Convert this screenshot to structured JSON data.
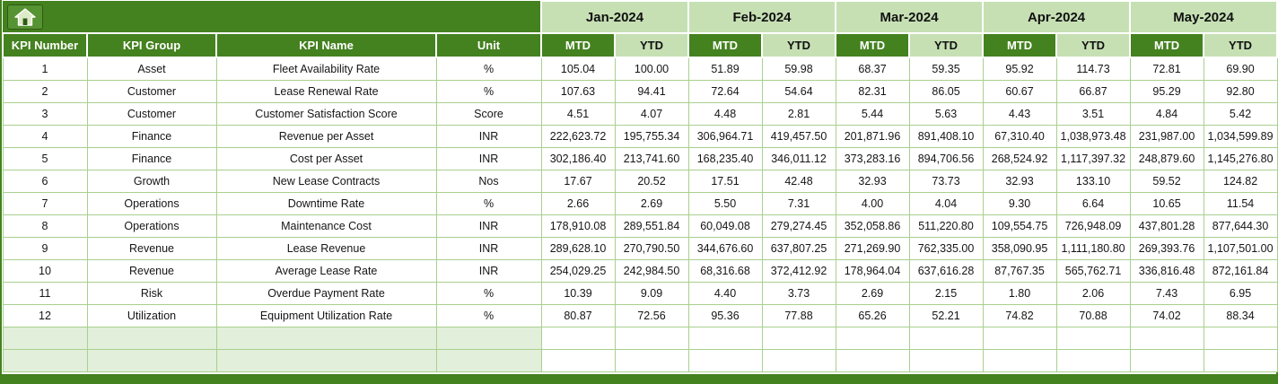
{
  "colors": {
    "dark_green": "#44811F",
    "light_green": "#C6E0B4",
    "grid_green": "#A9D08E",
    "pale_green": "#E2EFDA"
  },
  "toolbar": {
    "home_icon": "home"
  },
  "months": [
    "Jan-2024",
    "Feb-2024",
    "Mar-2024",
    "Apr-2024",
    "May-2024"
  ],
  "fixed_columns": [
    "KPI Number",
    "KPI Group",
    "KPI Name",
    "Unit"
  ],
  "period_columns": [
    "MTD",
    "YTD"
  ],
  "rows": [
    {
      "number": "1",
      "group": "Asset",
      "name": "Fleet Availability Rate",
      "unit": "%",
      "values": [
        "105.04",
        "100.00",
        "51.89",
        "59.98",
        "68.37",
        "59.35",
        "95.92",
        "114.73",
        "72.81",
        "69.90"
      ]
    },
    {
      "number": "2",
      "group": "Customer",
      "name": "Lease Renewal Rate",
      "unit": "%",
      "values": [
        "107.63",
        "94.41",
        "72.64",
        "54.64",
        "82.31",
        "86.05",
        "60.67",
        "66.87",
        "95.29",
        "92.80"
      ]
    },
    {
      "number": "3",
      "group": "Customer",
      "name": "Customer Satisfaction Score",
      "unit": "Score",
      "values": [
        "4.51",
        "4.07",
        "4.48",
        "2.81",
        "5.44",
        "5.63",
        "4.43",
        "3.51",
        "4.84",
        "5.42"
      ]
    },
    {
      "number": "4",
      "group": "Finance",
      "name": "Revenue per Asset",
      "unit": "INR",
      "values": [
        "222,623.72",
        "195,755.34",
        "306,964.71",
        "419,457.50",
        "201,871.96",
        "891,408.10",
        "67,310.40",
        "1,038,973.48",
        "231,987.00",
        "1,034,599.89"
      ]
    },
    {
      "number": "5",
      "group": "Finance",
      "name": "Cost per Asset",
      "unit": "INR",
      "values": [
        "302,186.40",
        "213,741.60",
        "168,235.40",
        "346,011.12",
        "373,283.16",
        "894,706.56",
        "268,524.92",
        "1,117,397.32",
        "248,879.60",
        "1,145,276.80"
      ]
    },
    {
      "number": "6",
      "group": "Growth",
      "name": "New Lease Contracts",
      "unit": "Nos",
      "values": [
        "17.67",
        "20.52",
        "17.51",
        "42.48",
        "32.93",
        "73.73",
        "32.93",
        "133.10",
        "59.52",
        "124.82"
      ]
    },
    {
      "number": "7",
      "group": "Operations",
      "name": "Downtime Rate",
      "unit": "%",
      "values": [
        "2.66",
        "2.69",
        "5.50",
        "7.31",
        "4.00",
        "4.04",
        "9.30",
        "6.64",
        "10.65",
        "11.54"
      ]
    },
    {
      "number": "8",
      "group": "Operations",
      "name": "Maintenance Cost",
      "unit": "INR",
      "values": [
        "178,910.08",
        "289,551.84",
        "60,049.08",
        "279,274.45",
        "352,058.86",
        "511,220.80",
        "109,554.75",
        "726,948.09",
        "437,801.28",
        "877,644.30"
      ]
    },
    {
      "number": "9",
      "group": "Revenue",
      "name": "Lease Revenue",
      "unit": "INR",
      "values": [
        "289,628.10",
        "270,790.50",
        "344,676.60",
        "637,807.25",
        "271,269.90",
        "762,335.00",
        "358,090.95",
        "1,111,180.80",
        "269,393.76",
        "1,107,501.00"
      ]
    },
    {
      "number": "10",
      "group": "Revenue",
      "name": "Average Lease Rate",
      "unit": "INR",
      "values": [
        "254,029.25",
        "242,984.50",
        "68,316.68",
        "372,412.92",
        "178,964.04",
        "637,616.28",
        "87,767.35",
        "565,762.71",
        "336,816.48",
        "872,161.84"
      ]
    },
    {
      "number": "11",
      "group": "Risk",
      "name": "Overdue Payment Rate",
      "unit": "%",
      "values": [
        "10.39",
        "9.09",
        "4.40",
        "3.73",
        "2.69",
        "2.15",
        "1.80",
        "2.06",
        "7.43",
        "6.95"
      ]
    },
    {
      "number": "12",
      "group": "Utilization",
      "name": "Equipment Utilization Rate",
      "unit": "%",
      "values": [
        "80.87",
        "72.56",
        "95.36",
        "77.88",
        "65.26",
        "52.21",
        "74.82",
        "70.88",
        "74.02",
        "88.34"
      ]
    }
  ],
  "empty_row_count": 2
}
